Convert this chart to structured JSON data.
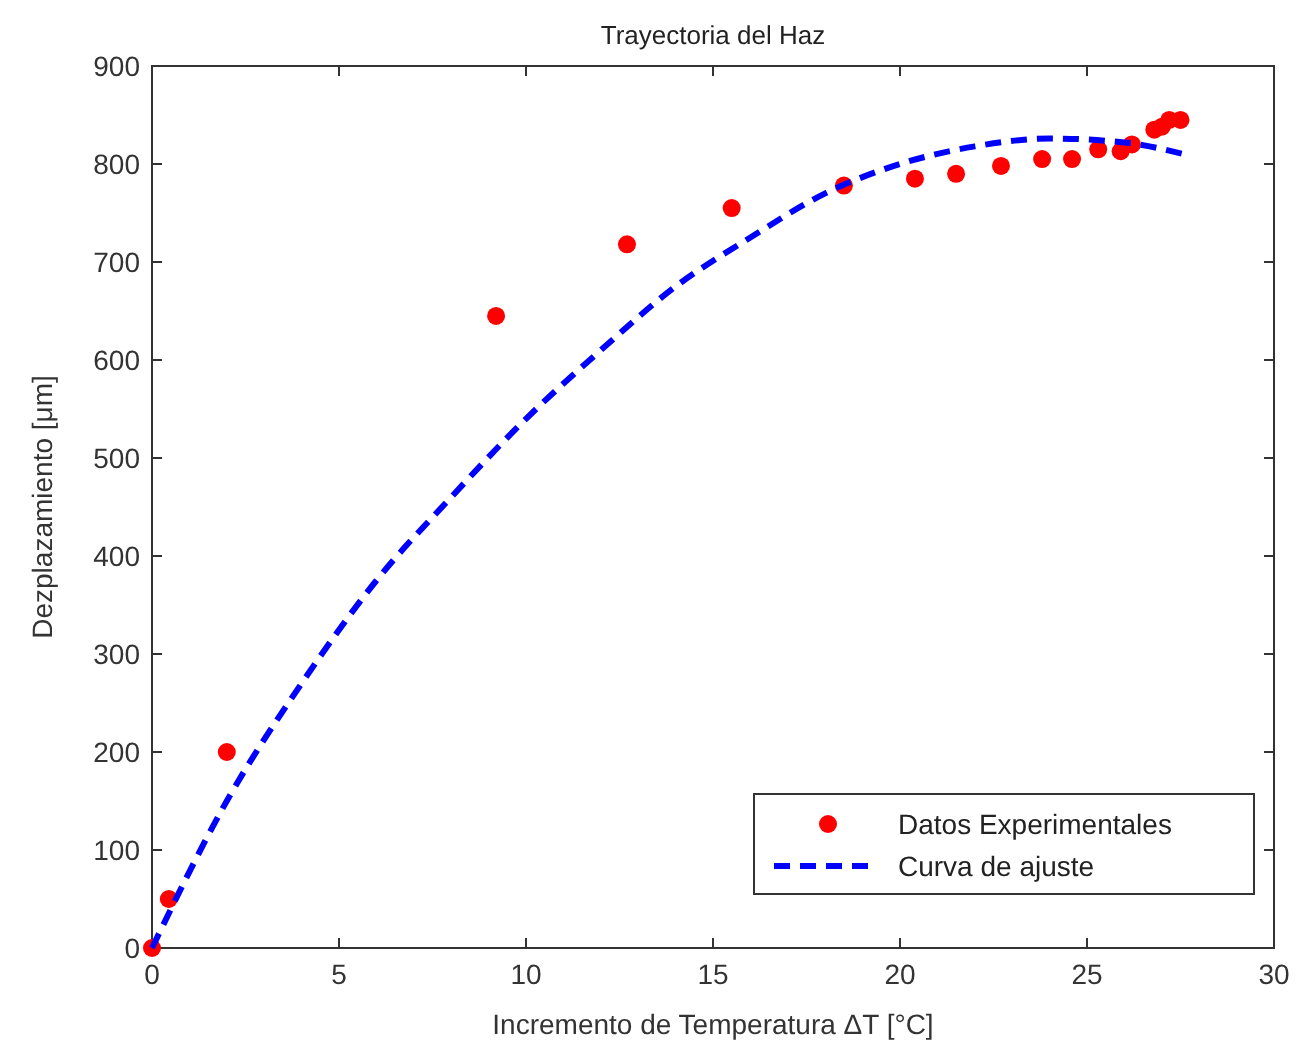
{
  "chart_data": {
    "type": "scatter",
    "title": "Trayectoria del Haz",
    "xlabel": "Incremento de Temperatura ΔT [°C]",
    "ylabel": "Dezplazamiento  [μm]",
    "xlim": [
      0,
      30
    ],
    "xticks": [
      0,
      5,
      10,
      15,
      20,
      25,
      30
    ],
    "ylim": [
      0,
      900
    ],
    "yticks": [
      0,
      100,
      200,
      300,
      400,
      500,
      600,
      700,
      800,
      900
    ],
    "grid": false,
    "legend": "bottom right",
    "series": [
      {
        "name": "Datos Experimentales",
        "color": "#ff0000",
        "marker": "circle",
        "x": [
          0,
          0.45,
          2,
          9.2,
          12.7,
          15.5,
          18.5,
          20.4,
          21.5,
          22.7,
          23.8,
          24.6,
          25.3,
          25.9,
          26.2,
          26.8,
          27.0,
          27.2,
          27.5
        ],
        "values": [
          0,
          50,
          200,
          645,
          718,
          755,
          778,
          785,
          790,
          798,
          805,
          805,
          815,
          813,
          820,
          835,
          838,
          845,
          845
        ]
      },
      {
        "name": "Curva de ajuste",
        "type": "line",
        "color": "#0000ff",
        "line_style": "dashed",
        "x": [
          0,
          2,
          4,
          6,
          8,
          10,
          12,
          14,
          16,
          18,
          20,
          22,
          24,
          26,
          27.6
        ],
        "values": [
          0,
          150,
          270,
          375,
          460,
          540,
          610,
          675,
          725,
          770,
          800,
          818,
          826,
          822,
          810
        ]
      }
    ]
  }
}
